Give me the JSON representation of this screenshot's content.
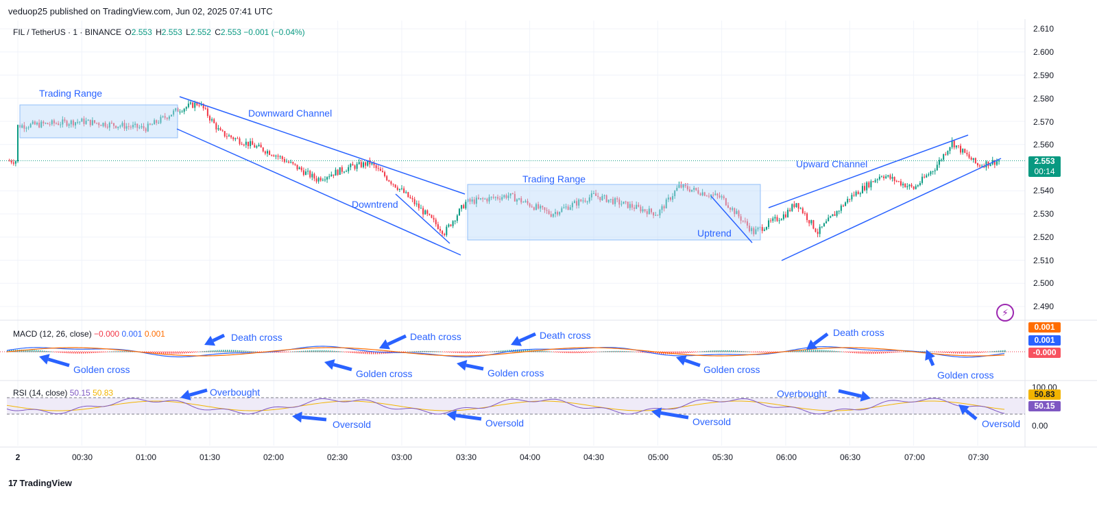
{
  "header": {
    "publisher": "veduop25 published on TradingView.com, Jun 02, 2025 07:41 UTC"
  },
  "legend": {
    "symbol": "FIL / TetherUS · 1 · BINANCE",
    "o_label": "O",
    "o": "2.553",
    "h_label": "H",
    "h": "2.553",
    "l_label": "L",
    "l": "2.552",
    "c_label": "C",
    "c": "2.553",
    "change": "−0.001 (−0.04%)"
  },
  "macd_legend": {
    "title": "MACD (12, 26, close)",
    "v1": "−0.000",
    "v2": "0.001",
    "v3": "0.001"
  },
  "rsi_legend": {
    "title": "RSI (14, close)",
    "v1": "50.15",
    "v2": "50.83"
  },
  "price_axis": [
    "2.610",
    "2.600",
    "2.590",
    "2.580",
    "2.570",
    "2.560",
    "2.550",
    "2.540",
    "2.530",
    "2.520",
    "2.510",
    "2.500",
    "2.490"
  ],
  "time_axis": [
    "2",
    "00:30",
    "01:00",
    "01:30",
    "02:00",
    "02:30",
    "03:00",
    "03:30",
    "04:00",
    "04:30",
    "05:00",
    "05:30",
    "06:00",
    "06:30",
    "07:00",
    "07:30"
  ],
  "badges": {
    "price": "2.553",
    "countdown": "00:14",
    "macd_signal": "0.001",
    "macd_line": "0.001",
    "macd_hist": "-0.000",
    "rsi_ma": "50.83",
    "rsi": "50.15"
  },
  "rsi_axis": [
    "100.00",
    "0.00"
  ],
  "annotations": {
    "trading_range_1": "Trading Range",
    "downward_channel": "Downward Channel",
    "downtrend": "Downtrend",
    "trading_range_2": "Trading Range",
    "uptrend": "Uptrend",
    "upward_channel": "Upward Channel",
    "death_cross_1": "Death cross",
    "death_cross_2": "Death cross",
    "death_cross_3": "Death cross",
    "death_cross_4": "Death cross",
    "golden_cross_1": "Golden cross",
    "golden_cross_2": "Golden cross",
    "golden_cross_3": "Golden cross",
    "golden_cross_4": "Golden cross",
    "golden_cross_5": "Golden cross",
    "overbought_1": "Overbought",
    "overbought_2": "Overbought",
    "oversold_1": "Oversold",
    "oversold_2": "Oversold",
    "oversold_3": "Oversold",
    "oversold_4": "Oversold"
  },
  "footer": {
    "logo_mark": "17",
    "logo_text": "TradingView"
  },
  "colors": {
    "up": "#089981",
    "down": "#f23645",
    "drawing": "#2962ff",
    "macd": "#2962ff",
    "signal": "#ff6d00",
    "rsi": "#7e57c2",
    "rsi_ma": "#f2b400"
  },
  "chart_data": {
    "type": "candlestick",
    "symbol": "FIL / TetherUS",
    "ylim": [
      2.485,
      2.612
    ],
    "key_prices": [
      {
        "time": "00:00",
        "price": 2.568
      },
      {
        "time": "00:30",
        "price": 2.57
      },
      {
        "time": "01:00",
        "price": 2.567
      },
      {
        "time": "01:15",
        "price": 2.575
      },
      {
        "time": "01:25",
        "price": 2.578
      },
      {
        "time": "01:35",
        "price": 2.565
      },
      {
        "time": "02:00",
        "price": 2.556
      },
      {
        "time": "02:20",
        "price": 2.545
      },
      {
        "time": "02:35",
        "price": 2.55
      },
      {
        "time": "02:45",
        "price": 2.552
      },
      {
        "time": "03:00",
        "price": 2.54
      },
      {
        "time": "03:20",
        "price": 2.522
      },
      {
        "time": "03:30",
        "price": 2.535
      },
      {
        "time": "03:50",
        "price": 2.538
      },
      {
        "time": "04:10",
        "price": 2.53
      },
      {
        "time": "04:30",
        "price": 2.538
      },
      {
        "time": "05:00",
        "price": 2.53
      },
      {
        "time": "05:10",
        "price": 2.542
      },
      {
        "time": "05:30",
        "price": 2.537
      },
      {
        "time": "05:45",
        "price": 2.522
      },
      {
        "time": "06:00",
        "price": 2.53
      },
      {
        "time": "06:05",
        "price": 2.535
      },
      {
        "time": "06:15",
        "price": 2.522
      },
      {
        "time": "06:30",
        "price": 2.537
      },
      {
        "time": "06:45",
        "price": 2.547
      },
      {
        "time": "07:00",
        "price": 2.541
      },
      {
        "time": "07:10",
        "price": 2.55
      },
      {
        "time": "07:18",
        "price": 2.561
      },
      {
        "time": "07:30",
        "price": 2.551
      },
      {
        "time": "07:40",
        "price": 2.553
      }
    ],
    "last_price": 2.553,
    "macd": {
      "macd": 0.001,
      "signal": 0.001,
      "histogram": -0.0
    },
    "rsi": {
      "rsi": 50.15,
      "ma": 50.83
    }
  }
}
